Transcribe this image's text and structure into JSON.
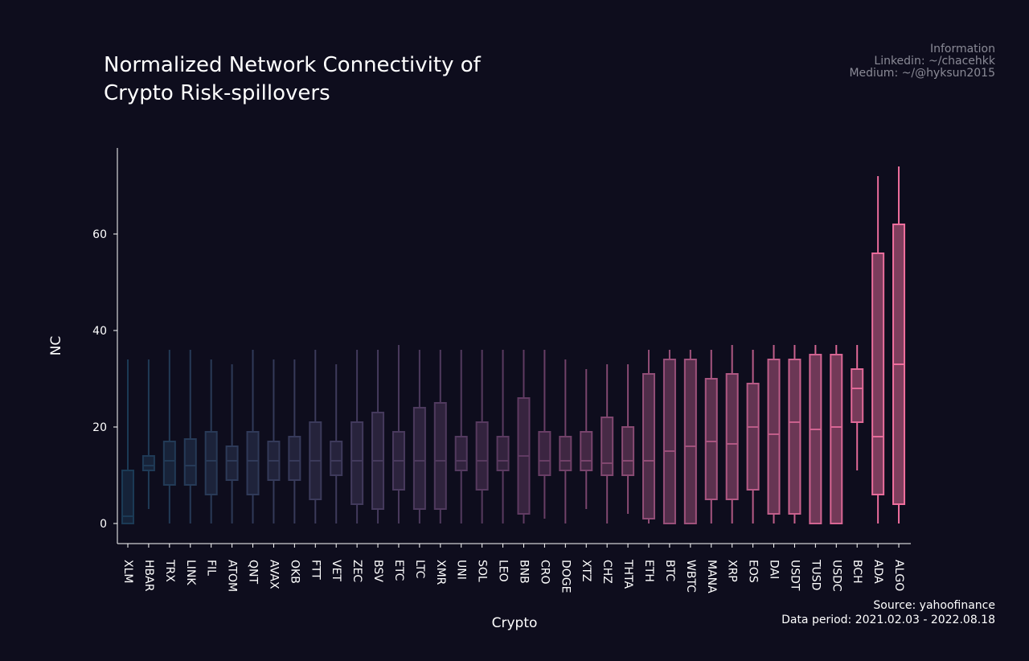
{
  "info": {
    "heading": "Information",
    "linkedin": "Linkedin: ~/chacehkk",
    "medium": "Medium: ~/@hyksun2015"
  },
  "footer": {
    "source": "Source: yahoofinance",
    "period": "Data period: 2021.02.03 - 2022.08.18"
  },
  "chart_data": {
    "type": "box",
    "title": "Normalized Network Connectivity of\nCrypto Risk-spillovers",
    "xlabel": "Crypto",
    "ylabel": "NC",
    "ylim": [
      -4,
      78
    ],
    "yticks": [
      0,
      20,
      40,
      60
    ],
    "color_start": "#1b3a55",
    "color_end": "#f06f9e",
    "categories": [
      "XLM",
      "HBAR",
      "TRX",
      "LINK",
      "FIL",
      "ATOM",
      "QNT",
      "AVAX",
      "OKB",
      "FTT",
      "VET",
      "ZEC",
      "BSV",
      "ETC",
      "LTC",
      "XMR",
      "UNI",
      "SOL",
      "LEO",
      "BNB",
      "CRO",
      "DOGE",
      "XTZ",
      "CHZ",
      "THTA",
      "ETH",
      "BTC",
      "WBTC",
      "MANA",
      "XRP",
      "EOS",
      "DAI",
      "USDT",
      "TUSD",
      "USDC",
      "BCH",
      "ADA",
      "ALGO"
    ],
    "boxes": [
      {
        "min": 0,
        "q1": 0,
        "median": 1.5,
        "q3": 11,
        "max": 34
      },
      {
        "min": 3,
        "q1": 11,
        "median": 12,
        "q3": 14,
        "max": 34
      },
      {
        "min": 0,
        "q1": 8,
        "median": 13,
        "q3": 17,
        "max": 36
      },
      {
        "min": 0,
        "q1": 8,
        "median": 12,
        "q3": 17.5,
        "max": 36
      },
      {
        "min": 0,
        "q1": 6,
        "median": 13,
        "q3": 19,
        "max": 34
      },
      {
        "min": 0,
        "q1": 9,
        "median": 13,
        "q3": 16,
        "max": 33
      },
      {
        "min": 0,
        "q1": 6,
        "median": 13,
        "q3": 19,
        "max": 36
      },
      {
        "min": 0,
        "q1": 9,
        "median": 13,
        "q3": 17,
        "max": 34
      },
      {
        "min": 0,
        "q1": 9,
        "median": 13,
        "q3": 18,
        "max": 34
      },
      {
        "min": 0,
        "q1": 5,
        "median": 13,
        "q3": 21,
        "max": 36
      },
      {
        "min": 0,
        "q1": 10,
        "median": 13,
        "q3": 17,
        "max": 33
      },
      {
        "min": 0,
        "q1": 4,
        "median": 13,
        "q3": 21,
        "max": 36
      },
      {
        "min": 0,
        "q1": 3,
        "median": 13,
        "q3": 23,
        "max": 36
      },
      {
        "min": 0,
        "q1": 7,
        "median": 13,
        "q3": 19,
        "max": 37
      },
      {
        "min": 0,
        "q1": 3,
        "median": 13,
        "q3": 24,
        "max": 36
      },
      {
        "min": 0,
        "q1": 3,
        "median": 13,
        "q3": 25,
        "max": 36
      },
      {
        "min": 0,
        "q1": 11,
        "median": 13,
        "q3": 18,
        "max": 36
      },
      {
        "min": 0,
        "q1": 7,
        "median": 13,
        "q3": 21,
        "max": 36
      },
      {
        "min": 0,
        "q1": 11,
        "median": 13,
        "q3": 18,
        "max": 36
      },
      {
        "min": 0,
        "q1": 2,
        "median": 14,
        "q3": 26,
        "max": 36
      },
      {
        "min": 1,
        "q1": 10,
        "median": 13,
        "q3": 19,
        "max": 36
      },
      {
        "min": 0,
        "q1": 11,
        "median": 13,
        "q3": 18,
        "max": 34
      },
      {
        "min": 3,
        "q1": 11,
        "median": 13,
        "q3": 19,
        "max": 32
      },
      {
        "min": 0,
        "q1": 10,
        "median": 12.5,
        "q3": 22,
        "max": 33
      },
      {
        "min": 2,
        "q1": 10,
        "median": 13,
        "q3": 20,
        "max": 33
      },
      {
        "min": 0,
        "q1": 1,
        "median": 13,
        "q3": 31,
        "max": 36
      },
      {
        "min": 0,
        "q1": 0,
        "median": 15,
        "q3": 34,
        "max": 36
      },
      {
        "min": 0,
        "q1": 0,
        "median": 16,
        "q3": 34,
        "max": 36
      },
      {
        "min": 0,
        "q1": 5,
        "median": 17,
        "q3": 30,
        "max": 36
      },
      {
        "min": 0,
        "q1": 5,
        "median": 16.5,
        "q3": 31,
        "max": 37
      },
      {
        "min": 0,
        "q1": 7,
        "median": 20,
        "q3": 29,
        "max": 36
      },
      {
        "min": 0,
        "q1": 2,
        "median": 18.5,
        "q3": 34,
        "max": 37
      },
      {
        "min": 0,
        "q1": 2,
        "median": 21,
        "q3": 34,
        "max": 37
      },
      {
        "min": 0,
        "q1": 0,
        "median": 19.5,
        "q3": 35,
        "max": 37
      },
      {
        "min": 0,
        "q1": 0,
        "median": 20,
        "q3": 35,
        "max": 37
      },
      {
        "min": 11,
        "q1": 21,
        "median": 28,
        "q3": 32,
        "max": 37
      },
      {
        "min": 0,
        "q1": 6,
        "median": 18,
        "q3": 56,
        "max": 72
      },
      {
        "min": 0,
        "q1": 4,
        "median": 33,
        "q3": 62,
        "max": 74
      }
    ]
  }
}
